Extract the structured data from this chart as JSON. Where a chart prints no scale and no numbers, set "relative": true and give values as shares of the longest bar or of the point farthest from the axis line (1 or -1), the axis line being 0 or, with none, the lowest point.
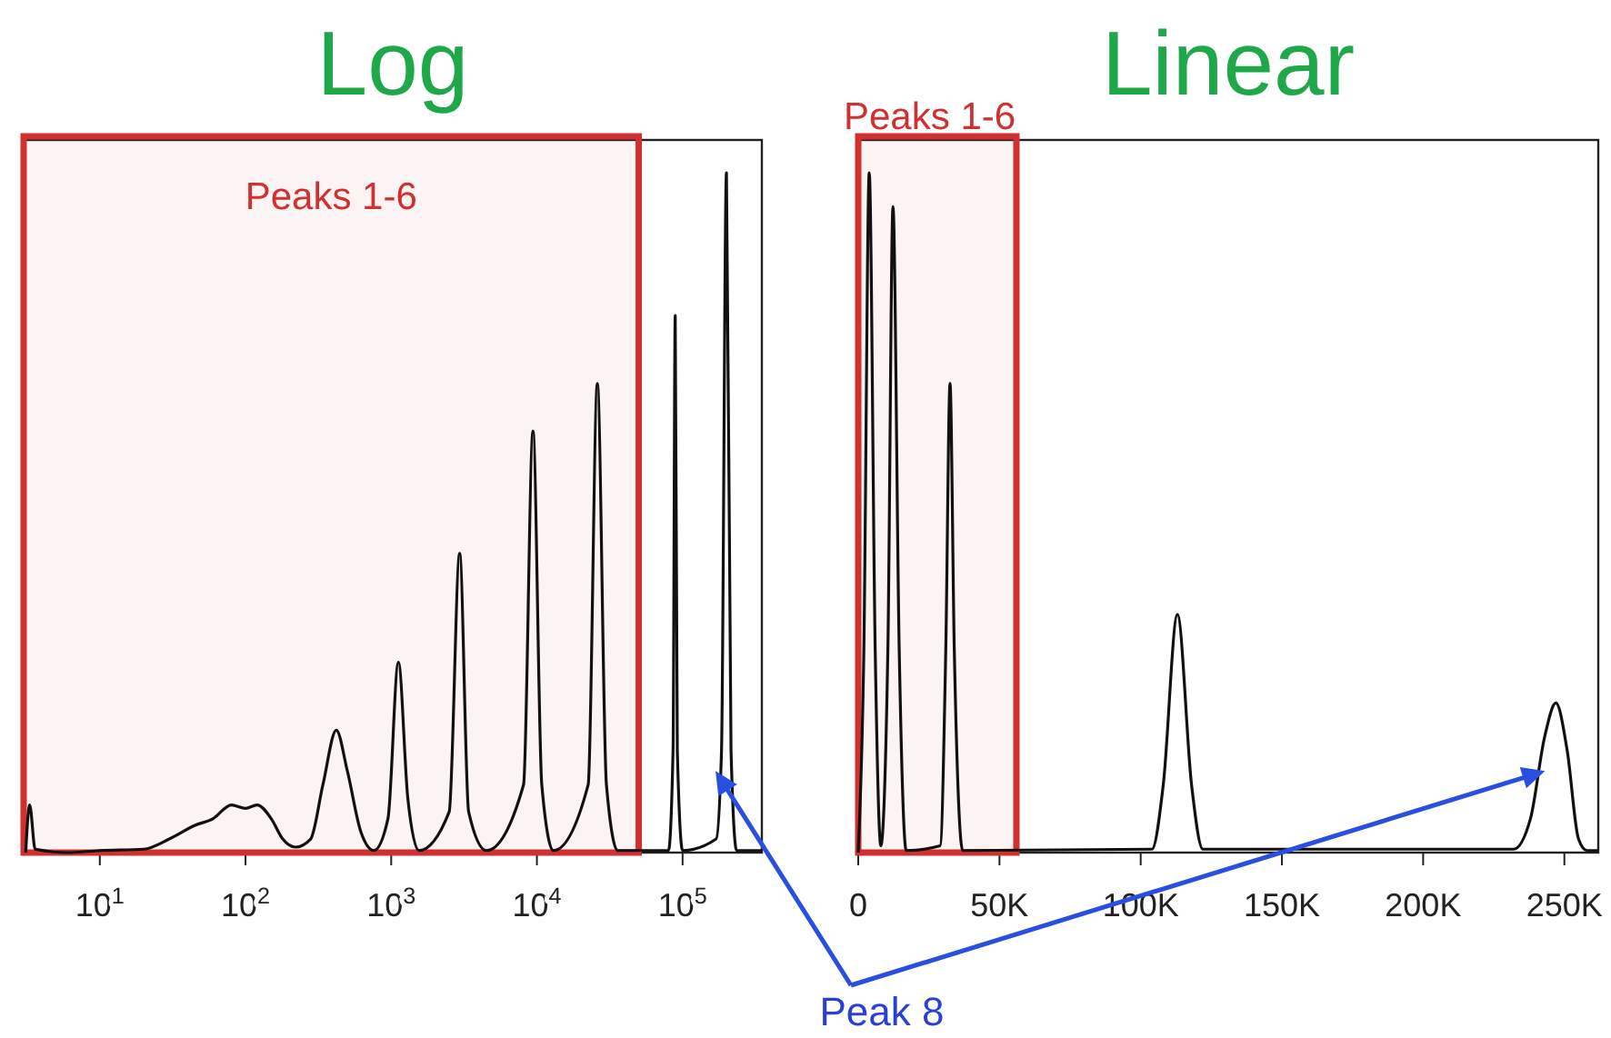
{
  "chart_data": [
    {
      "type": "line",
      "title": "Log",
      "relative": true,
      "log": "x",
      "xlim": [
        3,
        350000
      ],
      "xticks": [
        {
          "value": 10,
          "label": "10$^{1}$"
        },
        {
          "value": 100,
          "label": "10$^{2}$"
        },
        {
          "value": 1000,
          "label": "10$^{3}$"
        },
        {
          "value": 10000,
          "label": "10$^{4}$"
        },
        {
          "value": 100000,
          "label": "10$^{5}$"
        }
      ],
      "bands": [
        {
          "axis": "x",
          "from": 3,
          "to": 50000,
          "label": "Peaks 1-6",
          "color": "#d03030"
        }
      ],
      "series": [
        {
          "color": "#111111",
          "x": [
            3.1,
            3.3,
            3.6,
            6,
            10,
            20,
            30,
            45,
            60,
            80,
            100,
            120,
            150,
            180,
            220,
            280,
            340,
            420,
            500,
            620,
            760,
            950,
            1120,
            1300,
            1550,
            2500,
            2950,
            3400,
            4500,
            8100,
            9400,
            10800,
            13000,
            22500,
            26000,
            30000,
            36000,
            80000,
            86000,
            89000,
            92000,
            100000,
            170000,
            185000,
            200000,
            215000,
            235000,
            350000
          ],
          "values": [
            0,
            0.07,
            0.005,
            0,
            0.003,
            0.005,
            0.02,
            0.04,
            0.05,
            0.07,
            0.065,
            0.07,
            0.05,
            0.02,
            0.008,
            0.02,
            0.1,
            0.18,
            0.12,
            0.03,
            0.003,
            0.05,
            0.28,
            0.08,
            0.003,
            0.06,
            0.44,
            0.06,
            0.003,
            0.1,
            0.62,
            0.1,
            0.003,
            0.1,
            0.69,
            0.1,
            0.003,
            0.003,
            0.15,
            0.79,
            0.15,
            0.003,
            0.02,
            0.15,
            1.0,
            0.15,
            0.003,
            0.003
          ]
        }
      ]
    },
    {
      "type": "line",
      "title": "Linear",
      "relative": true,
      "xlim": [
        0,
        262000
      ],
      "xticks": [
        0,
        {
          "value": 50000,
          "label": "50K"
        },
        {
          "value": 100000,
          "label": "100K"
        },
        {
          "value": 150000,
          "label": "150K"
        },
        {
          "value": 200000,
          "label": "200K"
        },
        {
          "value": 250000,
          "label": "250K"
        }
      ],
      "bands": [
        {
          "axis": "x",
          "from": 0,
          "to": 56000,
          "label": "Peaks 1-6",
          "color": "#d03030"
        }
      ],
      "annotations": [
        "Peak 8"
      ],
      "series": [
        {
          "color": "#111111",
          "x": [
            0,
            2000,
            3900,
            6000,
            8000,
            10500,
            12300,
            14500,
            17000,
            29000,
            31000,
            32500,
            34000,
            37000,
            104000,
            108000,
            113000,
            118000,
            122000,
            232000,
            238000,
            243000,
            247000,
            251000,
            255000,
            258000,
            262000
          ],
          "values": [
            0,
            0.3,
            1.0,
            0.3,
            0.01,
            0.3,
            0.95,
            0.3,
            0.003,
            0.01,
            0.3,
            0.69,
            0.3,
            0.003,
            0.005,
            0.1,
            0.35,
            0.1,
            0.005,
            0.005,
            0.05,
            0.17,
            0.22,
            0.15,
            0.02,
            0.003,
            0.003
          ]
        }
      ]
    }
  ]
}
